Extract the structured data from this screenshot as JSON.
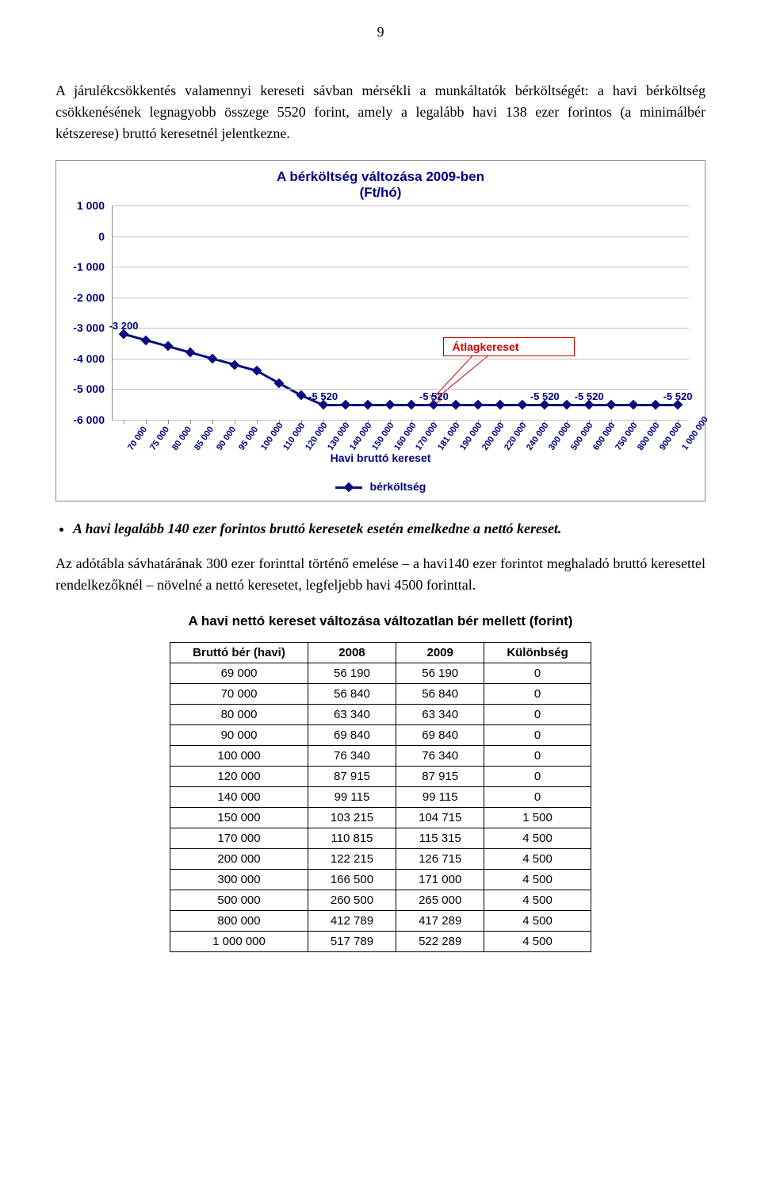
{
  "page_number": "9",
  "intro_paragraph": "A járulékcsökkentés valamennyi kereseti sávban mérsékli a munkáltatók bérköltségét: a havi bérköltség csökkenésének legnagyobb összege 5520 forint, amely a legalább havi 138 ezer forintos (a minimálbér kétszerese) bruttó keresetnél jelentkezne.",
  "chart": {
    "title_line1": "A bérköltség változása 2009-ben",
    "title_line2": "(Ft/hó)",
    "x_axis_title": "Havi bruttó kereset",
    "legend_label": "bérköltség",
    "callout_label": "Átlagkereset",
    "callout_color": "#cc0000",
    "line_color": "#0b0b80",
    "grid_color": "#c0c0c0",
    "ymin": -6000,
    "ymax": 1000,
    "y_ticks": [
      "1 000",
      "0",
      "-1 000",
      "-2 000",
      "-3 000",
      "-4 000",
      "-5 000",
      "-6 000"
    ],
    "y_tick_values": [
      1000,
      0,
      -1000,
      -2000,
      -3000,
      -4000,
      -5000,
      -6000
    ],
    "x_categories": [
      "70 000",
      "75 000",
      "80 000",
      "85 000",
      "90 000",
      "95 000",
      "100 000",
      "110 000",
      "120 000",
      "130 000",
      "140 000",
      "150 000",
      "160 000",
      "170 000",
      "181 000",
      "190 000",
      "200 000",
      "220 000",
      "240 000",
      "300 000",
      "500 000",
      "600 000",
      "750 000",
      "800 000",
      "900 000",
      "1 000 000"
    ],
    "series": [
      -3200,
      -3400,
      -3600,
      -3800,
      -4000,
      -4200,
      -4400,
      -4800,
      -5200,
      -5520,
      -5520,
      -5520,
      -5520,
      -5520,
      -5520,
      -5520,
      -5520,
      -5520,
      -5520,
      -5520,
      -5520,
      -5520,
      -5520,
      -5520,
      -5520,
      -5520
    ],
    "data_labels": [
      {
        "x_index": 0,
        "text": "-3 200"
      },
      {
        "x_index": 9,
        "text": "-5 520"
      },
      {
        "x_index": 14,
        "text": "-5 520"
      },
      {
        "x_index": 19,
        "text": "-5 520"
      },
      {
        "x_index": 21,
        "text": "-5 520"
      },
      {
        "x_index": 25,
        "text": "-5 520"
      }
    ],
    "callout_arrow_to_index": 14
  },
  "bullet_text": "A havi legalább 140 ezer forintos bruttó keresetek esetén emelkedne a nettó kereset.",
  "body_paragraph": "Az adótábla sávhatárának 300 ezer forinttal történő emelése – a havi140 ezer forintot meghaladó bruttó keresettel rendelkezőknél – növelné a nettó keresetet, legfeljebb havi 4500 forinttal.",
  "table": {
    "title": "A havi nettó kereset változása változatlan bér mellett (forint)",
    "columns": [
      "Bruttó bér (havi)",
      "2008",
      "2009",
      "Különbség"
    ],
    "rows": [
      [
        "69 000",
        "56 190",
        "56 190",
        "0"
      ],
      [
        "70 000",
        "56 840",
        "56 840",
        "0"
      ],
      [
        "80 000",
        "63 340",
        "63 340",
        "0"
      ],
      [
        "90 000",
        "69 840",
        "69 840",
        "0"
      ],
      [
        "100 000",
        "76 340",
        "76 340",
        "0"
      ],
      [
        "120 000",
        "87 915",
        "87 915",
        "0"
      ],
      [
        "140 000",
        "99 115",
        "99 115",
        "0"
      ],
      [
        "150 000",
        "103 215",
        "104 715",
        "1 500"
      ],
      [
        "170 000",
        "110 815",
        "115 315",
        "4 500"
      ],
      [
        "200 000",
        "122 215",
        "126 715",
        "4 500"
      ],
      [
        "300 000",
        "166 500",
        "171 000",
        "4 500"
      ],
      [
        "500 000",
        "260 500",
        "265 000",
        "4 500"
      ],
      [
        "800 000",
        "412 789",
        "417 289",
        "4 500"
      ],
      [
        "1 000 000",
        "517 789",
        "522 289",
        "4 500"
      ]
    ]
  }
}
